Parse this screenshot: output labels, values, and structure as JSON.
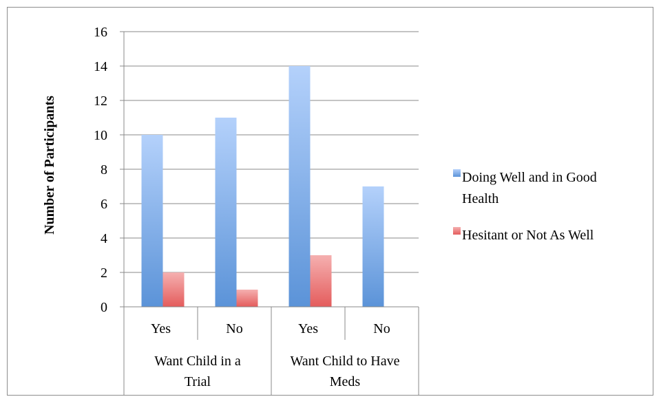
{
  "chart_data": {
    "type": "bar",
    "title": "",
    "xlabel": "",
    "ylabel": "Number of Participants",
    "ylim": [
      0,
      16
    ],
    "yticks": [
      0,
      2,
      4,
      6,
      8,
      10,
      12,
      14,
      16
    ],
    "grid": true,
    "legend_position": "right",
    "categories": [
      "Yes",
      "No",
      "Yes",
      "No"
    ],
    "groups": [
      {
        "label_lines": [
          "Want Child in a",
          "Trial"
        ]
      },
      {
        "label_lines": [
          "Want Child to Have",
          "Meds"
        ]
      }
    ],
    "series": [
      {
        "name_lines": [
          "Doing Well and in Good",
          "Health"
        ],
        "values": [
          10,
          11,
          14,
          7
        ],
        "color": "#5b93d8",
        "color_light": "#b4d1fb"
      },
      {
        "name_lines": [
          "Hesitant or Not As Well"
        ],
        "values": [
          2,
          1,
          3,
          0
        ],
        "color": "#e45c5c",
        "color_light": "#f5b0b0"
      }
    ]
  }
}
